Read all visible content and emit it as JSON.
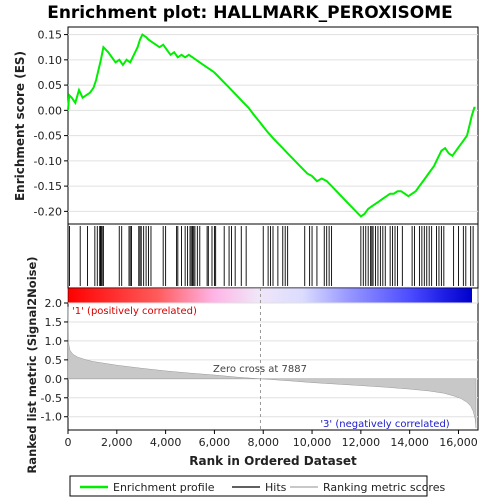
{
  "chart_data": {
    "type": "line",
    "title": "Enrichment plot: HALLMARK_PEROXISOME",
    "es_panel": {
      "ylabel": "Enrichment score (ES)",
      "ylim": [
        -0.225,
        0.165
      ],
      "yticks": [
        0.15,
        0.1,
        0.05,
        0.0,
        -0.05,
        -0.1,
        -0.15,
        -0.2
      ],
      "ytick_labels": [
        "0.15",
        "0.10",
        "0.05",
        "0.00",
        "-0.05",
        "-0.10",
        "-0.15",
        "-0.20"
      ],
      "series": [
        {
          "name": "Enrichment profile",
          "color": "#00ee00",
          "x": [
            0,
            50,
            150,
            300,
            450,
            600,
            750,
            900,
            1050,
            1150,
            1250,
            1350,
            1450,
            1550,
            1650,
            1800,
            1950,
            2100,
            2250,
            2400,
            2550,
            2700,
            2850,
            2950,
            3050,
            3200,
            3300,
            3450,
            3600,
            3750,
            3900,
            4050,
            4200,
            4350,
            4500,
            4650,
            4800,
            4950,
            5100,
            5250,
            5400,
            5550,
            5700,
            5850,
            6000,
            6200,
            6400,
            6600,
            6800,
            7000,
            7200,
            7400,
            7600,
            7800,
            8000,
            8200,
            8400,
            8600,
            8800,
            9000,
            9200,
            9400,
            9600,
            9800,
            10000,
            10200,
            10400,
            10600,
            10800,
            11000,
            11200,
            11400,
            11600,
            11800,
            12000,
            12150,
            12300,
            12450,
            12600,
            12750,
            12900,
            13050,
            13200,
            13350,
            13500,
            13650,
            13800,
            13950,
            14100,
            14250,
            14400,
            14550,
            14700,
            14850,
            15000,
            15150,
            15300,
            15450,
            15600,
            15750,
            15900,
            16050,
            16200,
            16350,
            16450,
            16550,
            16650,
            16700
          ],
          "y": [
            0.0,
            0.03,
            0.025,
            0.015,
            0.04,
            0.025,
            0.03,
            0.035,
            0.045,
            0.06,
            0.08,
            0.1,
            0.125,
            0.12,
            0.115,
            0.105,
            0.095,
            0.1,
            0.09,
            0.1,
            0.095,
            0.11,
            0.125,
            0.14,
            0.15,
            0.145,
            0.14,
            0.135,
            0.13,
            0.125,
            0.13,
            0.12,
            0.11,
            0.115,
            0.105,
            0.11,
            0.105,
            0.11,
            0.105,
            0.1,
            0.095,
            0.09,
            0.085,
            0.08,
            0.075,
            0.065,
            0.055,
            0.045,
            0.035,
            0.025,
            0.015,
            0.005,
            -0.008,
            -0.02,
            -0.032,
            -0.044,
            -0.055,
            -0.065,
            -0.075,
            -0.085,
            -0.095,
            -0.105,
            -0.115,
            -0.125,
            -0.13,
            -0.14,
            -0.135,
            -0.14,
            -0.15,
            -0.16,
            -0.17,
            -0.18,
            -0.19,
            -0.2,
            -0.21,
            -0.205,
            -0.195,
            -0.19,
            -0.185,
            -0.18,
            -0.175,
            -0.17,
            -0.165,
            -0.165,
            -0.16,
            -0.16,
            -0.165,
            -0.17,
            -0.165,
            -0.16,
            -0.15,
            -0.14,
            -0.13,
            -0.12,
            -0.11,
            -0.095,
            -0.08,
            -0.075,
            -0.085,
            -0.09,
            -0.08,
            -0.07,
            -0.06,
            -0.05,
            -0.03,
            -0.01,
            0.005,
            0.005
          ]
        }
      ]
    },
    "hits_panel": {
      "legend_name": "Hits",
      "positions": [
        60,
        500,
        800,
        1100,
        1200,
        1300,
        1330,
        1360,
        1400,
        1450,
        2100,
        2200,
        2500,
        2550,
        2600,
        2900,
        2950,
        3000,
        3100,
        3200,
        3300,
        3400,
        3900,
        4000,
        4450,
        4500,
        4650,
        4800,
        4900,
        5000,
        5050,
        5100,
        5150,
        5200,
        5300,
        5400,
        5700,
        5750,
        5900,
        6000,
        6050,
        6400,
        6600,
        6700,
        6850,
        7100,
        7300,
        8000,
        8200,
        8300,
        8400,
        8600,
        8800,
        8900,
        9000,
        9700,
        9900,
        10000,
        10200,
        10500,
        10600,
        10700,
        10800,
        12000,
        12100,
        12200,
        12300,
        12400,
        12450,
        12500,
        12600,
        12700,
        12800,
        12900,
        13000,
        13200,
        13300,
        13400,
        13500,
        13700,
        14100,
        14200,
        14400,
        14500,
        14600,
        14700,
        14800,
        14900,
        15100,
        15200,
        15300,
        15400,
        15800,
        16000,
        16200,
        16300,
        16500,
        16600
      ]
    },
    "metric_panel": {
      "ylabel": "Ranked list metric (Signal2Noise)",
      "xlabel": "Rank in Ordered Dataset",
      "ylim": [
        -1.35,
        2.0
      ],
      "yticks": [
        2.0,
        1.5,
        1.0,
        0.5,
        0.0,
        -0.5,
        -1.0
      ],
      "ytick_labels": [
        "2.0",
        "1.5",
        "1.0",
        "0.5",
        "0.0",
        "-0.5",
        "-1.0"
      ],
      "xlim": [
        0,
        16800
      ],
      "xticks": [
        0,
        2000,
        4000,
        6000,
        8000,
        10000,
        12000,
        14000,
        16000
      ],
      "xtick_labels": [
        "0",
        "2,000",
        "4,000",
        "6,000",
        "8,000",
        "10,000",
        "12,000",
        "14,000",
        "16,000"
      ],
      "metric_x": [
        0,
        20,
        80,
        200,
        400,
        700,
        1000,
        1500,
        2000,
        3000,
        4000,
        5000,
        6000,
        7000,
        7887,
        9000,
        10000,
        11000,
        12000,
        13000,
        14000,
        14800,
        15400,
        15800,
        16100,
        16350,
        16500,
        16600,
        16680,
        16720
      ],
      "metric_y": [
        1.9,
        0.95,
        0.75,
        0.65,
        0.57,
        0.51,
        0.46,
        0.41,
        0.36,
        0.28,
        0.21,
        0.15,
        0.1,
        0.04,
        0.0,
        -0.05,
        -0.1,
        -0.14,
        -0.18,
        -0.22,
        -0.27,
        -0.32,
        -0.38,
        -0.45,
        -0.52,
        -0.62,
        -0.72,
        -0.85,
        -1.05,
        -1.3
      ],
      "zero_cross_label": "Zero cross at 7887",
      "zero_cross": 7887,
      "pos_label": "'1' (positively correlated)",
      "neg_label": "'3' (negatively correlated)"
    },
    "legend": {
      "items": [
        "Enrichment profile",
        "Hits",
        "Ranking metric scores"
      ]
    },
    "colors": {
      "profile": "#00ee00",
      "hits": "#000000",
      "metric_fill": "#c8c8c8",
      "pos": "#ff0000",
      "neg": "#0000ff"
    }
  }
}
